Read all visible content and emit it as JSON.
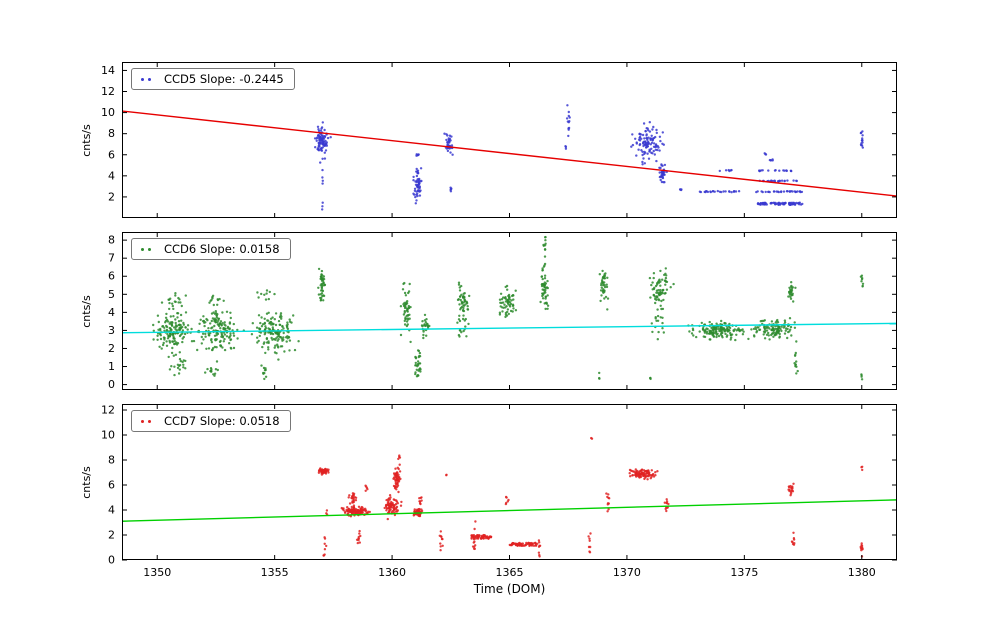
{
  "figure": {
    "background": "#ffffff",
    "xlabel": "Time (DOM)"
  },
  "clusters_format": "x_center, y_center, x_halfwidth, y_halfheight, n_points, uniform_flag(1=uniform,0=gaussian)",
  "chart_data": [
    {
      "type": "scatter",
      "name": "CCD5",
      "legend": "CCD5 Slope: -0.2445",
      "ylabel": "cnts/s",
      "marker_color": "#3a3ad0",
      "trend_color": "#e60000",
      "xlim": [
        1348.5,
        1381.5
      ],
      "ylim": [
        0,
        14.8
      ],
      "xticks": [
        1350,
        1355,
        1360,
        1365,
        1370,
        1375,
        1380
      ],
      "yticks": [
        2,
        4,
        6,
        8,
        10,
        12,
        14
      ],
      "show_x_labels": false,
      "trend": {
        "slope": -0.2445,
        "x": [
          1348.5,
          1381.5
        ],
        "y": [
          10.15,
          2.08
        ]
      },
      "clusters": [
        [
          1357.0,
          7.3,
          0.25,
          1.3,
          90,
          0
        ],
        [
          1357.0,
          4.0,
          0.08,
          1.2,
          5,
          0
        ],
        [
          1357.05,
          0.8,
          0.04,
          0.5,
          3,
          0
        ],
        [
          1361.1,
          3.3,
          0.18,
          1.5,
          55,
          0
        ],
        [
          1361.1,
          5.9,
          0.08,
          0.5,
          6,
          0
        ],
        [
          1362.4,
          7.0,
          0.15,
          1.4,
          40,
          0
        ],
        [
          1362.5,
          2.7,
          0.08,
          0.3,
          5,
          0
        ],
        [
          1367.5,
          9.3,
          0.07,
          1.7,
          12,
          0
        ],
        [
          1367.4,
          6.9,
          0.04,
          0.3,
          3,
          0
        ],
        [
          1370.9,
          7.2,
          0.55,
          1.6,
          110,
          0
        ],
        [
          1371.5,
          4.2,
          0.15,
          0.8,
          35,
          0
        ],
        [
          1372.3,
          2.6,
          0.07,
          0.25,
          4,
          0
        ],
        [
          1374.0,
          2.5,
          0.9,
          0.05,
          25,
          1
        ],
        [
          1374.2,
          4.5,
          0.3,
          0.05,
          6,
          1
        ],
        [
          1376.5,
          1.35,
          1.0,
          0.1,
          85,
          1
        ],
        [
          1376.5,
          2.5,
          1.0,
          0.05,
          30,
          1
        ],
        [
          1376.4,
          3.5,
          0.9,
          0.05,
          22,
          1
        ],
        [
          1376.3,
          4.5,
          0.8,
          0.05,
          16,
          1
        ],
        [
          1376.2,
          5.5,
          0.3,
          0.05,
          5,
          1
        ],
        [
          1375.9,
          6.0,
          0.08,
          0.2,
          3,
          0
        ],
        [
          1380.0,
          7.6,
          0.05,
          1.1,
          14,
          0
        ]
      ]
    },
    {
      "type": "scatter",
      "name": "CCD6",
      "legend": "CCD6 Slope: 0.0158",
      "ylabel": "cnts/s",
      "marker_color": "#2e8b2e",
      "trend_color": "#00dddd",
      "xlim": [
        1348.5,
        1381.5
      ],
      "ylim": [
        -0.3,
        8.45
      ],
      "xticks": [
        1350,
        1355,
        1360,
        1365,
        1370,
        1375,
        1380
      ],
      "yticks": [
        0,
        1,
        2,
        3,
        4,
        5,
        6,
        7,
        8
      ],
      "show_x_labels": false,
      "trend": {
        "slope": 0.0158,
        "x": [
          1348.5,
          1381.5
        ],
        "y": [
          2.87,
          3.39
        ]
      },
      "clusters": [
        [
          1350.7,
          2.9,
          0.7,
          1.0,
          140,
          0
        ],
        [
          1350.7,
          4.5,
          0.5,
          0.5,
          20,
          0
        ],
        [
          1350.9,
          1.0,
          0.4,
          0.6,
          18,
          0
        ],
        [
          1352.6,
          3.0,
          0.8,
          1.0,
          150,
          0
        ],
        [
          1352.6,
          4.8,
          0.4,
          0.4,
          12,
          0
        ],
        [
          1352.3,
          1.0,
          0.3,
          0.6,
          14,
          0
        ],
        [
          1355.0,
          3.0,
          0.9,
          1.1,
          150,
          0
        ],
        [
          1354.6,
          4.9,
          0.3,
          0.4,
          10,
          0
        ],
        [
          1354.6,
          0.8,
          0.15,
          0.6,
          10,
          0
        ],
        [
          1357.0,
          5.5,
          0.12,
          1.0,
          45,
          0
        ],
        [
          1360.6,
          4.0,
          0.2,
          1.3,
          50,
          0
        ],
        [
          1361.1,
          1.0,
          0.12,
          0.9,
          30,
          1
        ],
        [
          1361.4,
          3.2,
          0.15,
          0.7,
          25,
          0
        ],
        [
          1363.0,
          4.4,
          0.25,
          1.0,
          55,
          0
        ],
        [
          1363.0,
          2.9,
          0.15,
          0.4,
          8,
          0
        ],
        [
          1364.9,
          4.6,
          0.35,
          0.8,
          60,
          0
        ],
        [
          1366.5,
          5.3,
          0.18,
          1.2,
          50,
          0
        ],
        [
          1366.5,
          7.5,
          0.1,
          1.0,
          12,
          0
        ],
        [
          1369.0,
          5.4,
          0.15,
          1.0,
          40,
          0
        ],
        [
          1368.8,
          0.5,
          0.05,
          0.3,
          3,
          0
        ],
        [
          1371.4,
          5.3,
          0.45,
          1.1,
          70,
          0
        ],
        [
          1371.3,
          3.3,
          0.3,
          0.6,
          15,
          0
        ],
        [
          1371.0,
          0.3,
          0.05,
          0.2,
          3,
          0
        ],
        [
          1373.9,
          3.0,
          1.0,
          0.45,
          160,
          0
        ],
        [
          1376.2,
          3.1,
          0.8,
          0.5,
          120,
          0
        ],
        [
          1377.0,
          5.0,
          0.15,
          0.6,
          25,
          0
        ],
        [
          1377.2,
          1.2,
          0.08,
          1.0,
          12,
          0
        ],
        [
          1380.0,
          5.7,
          0.06,
          0.5,
          8,
          0
        ],
        [
          1380.0,
          0.5,
          0.05,
          0.25,
          4,
          0
        ]
      ]
    },
    {
      "type": "scatter",
      "name": "CCD7",
      "legend": "CCD7 Slope: 0.0518",
      "ylabel": "cnts/s",
      "marker_color": "#e02222",
      "trend_color": "#00d000",
      "xlim": [
        1348.5,
        1381.5
      ],
      "ylim": [
        0,
        12.48
      ],
      "xticks": [
        1350,
        1355,
        1360,
        1365,
        1370,
        1375,
        1380
      ],
      "yticks": [
        0,
        2,
        4,
        6,
        8,
        10,
        12
      ],
      "show_x_labels": true,
      "trend": {
        "slope": 0.0518,
        "x": [
          1348.5,
          1381.5
        ],
        "y": [
          3.1,
          4.81
        ]
      },
      "clusters": [
        [
          1357.1,
          7.1,
          0.2,
          0.25,
          45,
          0
        ],
        [
          1357.1,
          1.3,
          0.08,
          1.0,
          8,
          0
        ],
        [
          1357.2,
          3.8,
          0.05,
          0.3,
          3,
          0
        ],
        [
          1358.5,
          3.9,
          0.5,
          0.35,
          110,
          0
        ],
        [
          1358.3,
          4.9,
          0.2,
          0.7,
          25,
          0
        ],
        [
          1358.6,
          1.8,
          0.15,
          0.8,
          10,
          0
        ],
        [
          1358.9,
          5.8,
          0.05,
          0.4,
          5,
          0
        ],
        [
          1360.0,
          4.3,
          0.3,
          0.7,
          70,
          0
        ],
        [
          1360.2,
          6.6,
          0.12,
          0.9,
          55,
          0
        ],
        [
          1360.3,
          8.2,
          0.05,
          0.3,
          4,
          0
        ],
        [
          1361.1,
          3.8,
          0.15,
          0.3,
          60,
          0
        ],
        [
          1361.2,
          4.8,
          0.1,
          0.4,
          8,
          0
        ],
        [
          1362.1,
          1.4,
          0.08,
          1.1,
          10,
          0
        ],
        [
          1362.3,
          6.8,
          0.03,
          0.1,
          2,
          0
        ],
        [
          1363.8,
          1.85,
          0.45,
          0.15,
          60,
          1
        ],
        [
          1363.5,
          1.5,
          0.08,
          1.4,
          12,
          0
        ],
        [
          1364.9,
          4.9,
          0.06,
          0.5,
          6,
          0
        ],
        [
          1365.6,
          1.25,
          0.6,
          0.12,
          70,
          1
        ],
        [
          1366.3,
          1.0,
          0.06,
          0.8,
          8,
          0
        ],
        [
          1368.4,
          1.2,
          0.06,
          0.8,
          8,
          0
        ],
        [
          1368.5,
          9.7,
          0.02,
          0.1,
          2,
          0
        ],
        [
          1369.2,
          4.8,
          0.08,
          0.8,
          10,
          0
        ],
        [
          1370.7,
          6.9,
          0.5,
          0.35,
          90,
          0
        ],
        [
          1371.7,
          4.3,
          0.1,
          0.8,
          12,
          0
        ],
        [
          1377.0,
          5.6,
          0.1,
          0.6,
          18,
          0
        ],
        [
          1377.1,
          1.5,
          0.08,
          1.0,
          8,
          0
        ],
        [
          1380.0,
          1.0,
          0.08,
          0.5,
          12,
          0
        ],
        [
          1380.0,
          7.4,
          0.03,
          0.3,
          3,
          0
        ]
      ]
    }
  ]
}
